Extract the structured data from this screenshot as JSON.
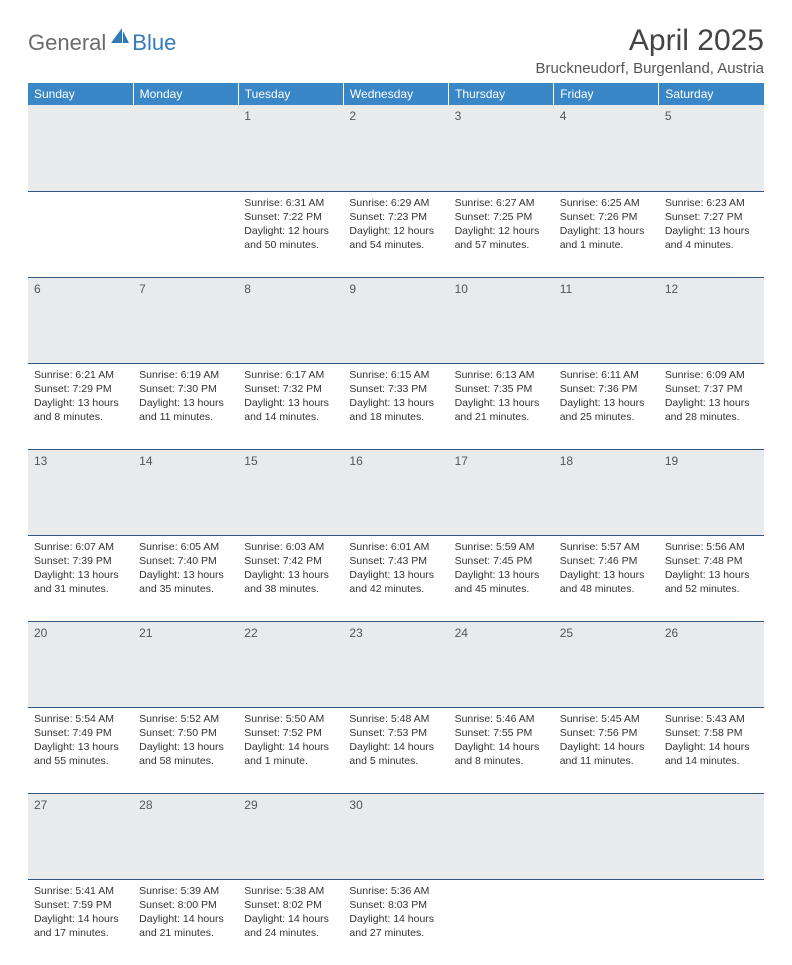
{
  "logo": {
    "general": "General",
    "blue": "Blue"
  },
  "title": "April 2025",
  "location": "Bruckneudorf, Burgenland, Austria",
  "colors": {
    "header_bg": "#3a87c8",
    "header_text": "#ffffff",
    "daynum_bg": "#e9eaeb",
    "rule": "#2b5f8f",
    "body_text": "#333333",
    "logo_gray": "#6b6b6b",
    "logo_blue": "#337ab7"
  },
  "weekdays": [
    "Sunday",
    "Monday",
    "Tuesday",
    "Wednesday",
    "Thursday",
    "Friday",
    "Saturday"
  ],
  "weeks": [
    {
      "nums": [
        "",
        "",
        "1",
        "2",
        "3",
        "4",
        "5"
      ],
      "cells": [
        {
          "sunrise": "",
          "sunset": "",
          "daylight": ""
        },
        {
          "sunrise": "",
          "sunset": "",
          "daylight": ""
        },
        {
          "sunrise": "Sunrise: 6:31 AM",
          "sunset": "Sunset: 7:22 PM",
          "daylight": "Daylight: 12 hours and 50 minutes."
        },
        {
          "sunrise": "Sunrise: 6:29 AM",
          "sunset": "Sunset: 7:23 PM",
          "daylight": "Daylight: 12 hours and 54 minutes."
        },
        {
          "sunrise": "Sunrise: 6:27 AM",
          "sunset": "Sunset: 7:25 PM",
          "daylight": "Daylight: 12 hours and 57 minutes."
        },
        {
          "sunrise": "Sunrise: 6:25 AM",
          "sunset": "Sunset: 7:26 PM",
          "daylight": "Daylight: 13 hours and 1 minute."
        },
        {
          "sunrise": "Sunrise: 6:23 AM",
          "sunset": "Sunset: 7:27 PM",
          "daylight": "Daylight: 13 hours and 4 minutes."
        }
      ]
    },
    {
      "nums": [
        "6",
        "7",
        "8",
        "9",
        "10",
        "11",
        "12"
      ],
      "cells": [
        {
          "sunrise": "Sunrise: 6:21 AM",
          "sunset": "Sunset: 7:29 PM",
          "daylight": "Daylight: 13 hours and 8 minutes."
        },
        {
          "sunrise": "Sunrise: 6:19 AM",
          "sunset": "Sunset: 7:30 PM",
          "daylight": "Daylight: 13 hours and 11 minutes."
        },
        {
          "sunrise": "Sunrise: 6:17 AM",
          "sunset": "Sunset: 7:32 PM",
          "daylight": "Daylight: 13 hours and 14 minutes."
        },
        {
          "sunrise": "Sunrise: 6:15 AM",
          "sunset": "Sunset: 7:33 PM",
          "daylight": "Daylight: 13 hours and 18 minutes."
        },
        {
          "sunrise": "Sunrise: 6:13 AM",
          "sunset": "Sunset: 7:35 PM",
          "daylight": "Daylight: 13 hours and 21 minutes."
        },
        {
          "sunrise": "Sunrise: 6:11 AM",
          "sunset": "Sunset: 7:36 PM",
          "daylight": "Daylight: 13 hours and 25 minutes."
        },
        {
          "sunrise": "Sunrise: 6:09 AM",
          "sunset": "Sunset: 7:37 PM",
          "daylight": "Daylight: 13 hours and 28 minutes."
        }
      ]
    },
    {
      "nums": [
        "13",
        "14",
        "15",
        "16",
        "17",
        "18",
        "19"
      ],
      "cells": [
        {
          "sunrise": "Sunrise: 6:07 AM",
          "sunset": "Sunset: 7:39 PM",
          "daylight": "Daylight: 13 hours and 31 minutes."
        },
        {
          "sunrise": "Sunrise: 6:05 AM",
          "sunset": "Sunset: 7:40 PM",
          "daylight": "Daylight: 13 hours and 35 minutes."
        },
        {
          "sunrise": "Sunrise: 6:03 AM",
          "sunset": "Sunset: 7:42 PM",
          "daylight": "Daylight: 13 hours and 38 minutes."
        },
        {
          "sunrise": "Sunrise: 6:01 AM",
          "sunset": "Sunset: 7:43 PM",
          "daylight": "Daylight: 13 hours and 42 minutes."
        },
        {
          "sunrise": "Sunrise: 5:59 AM",
          "sunset": "Sunset: 7:45 PM",
          "daylight": "Daylight: 13 hours and 45 minutes."
        },
        {
          "sunrise": "Sunrise: 5:57 AM",
          "sunset": "Sunset: 7:46 PM",
          "daylight": "Daylight: 13 hours and 48 minutes."
        },
        {
          "sunrise": "Sunrise: 5:56 AM",
          "sunset": "Sunset: 7:48 PM",
          "daylight": "Daylight: 13 hours and 52 minutes."
        }
      ]
    },
    {
      "nums": [
        "20",
        "21",
        "22",
        "23",
        "24",
        "25",
        "26"
      ],
      "cells": [
        {
          "sunrise": "Sunrise: 5:54 AM",
          "sunset": "Sunset: 7:49 PM",
          "daylight": "Daylight: 13 hours and 55 minutes."
        },
        {
          "sunrise": "Sunrise: 5:52 AM",
          "sunset": "Sunset: 7:50 PM",
          "daylight": "Daylight: 13 hours and 58 minutes."
        },
        {
          "sunrise": "Sunrise: 5:50 AM",
          "sunset": "Sunset: 7:52 PM",
          "daylight": "Daylight: 14 hours and 1 minute."
        },
        {
          "sunrise": "Sunrise: 5:48 AM",
          "sunset": "Sunset: 7:53 PM",
          "daylight": "Daylight: 14 hours and 5 minutes."
        },
        {
          "sunrise": "Sunrise: 5:46 AM",
          "sunset": "Sunset: 7:55 PM",
          "daylight": "Daylight: 14 hours and 8 minutes."
        },
        {
          "sunrise": "Sunrise: 5:45 AM",
          "sunset": "Sunset: 7:56 PM",
          "daylight": "Daylight: 14 hours and 11 minutes."
        },
        {
          "sunrise": "Sunrise: 5:43 AM",
          "sunset": "Sunset: 7:58 PM",
          "daylight": "Daylight: 14 hours and 14 minutes."
        }
      ]
    },
    {
      "nums": [
        "27",
        "28",
        "29",
        "30",
        "",
        "",
        ""
      ],
      "cells": [
        {
          "sunrise": "Sunrise: 5:41 AM",
          "sunset": "Sunset: 7:59 PM",
          "daylight": "Daylight: 14 hours and 17 minutes."
        },
        {
          "sunrise": "Sunrise: 5:39 AM",
          "sunset": "Sunset: 8:00 PM",
          "daylight": "Daylight: 14 hours and 21 minutes."
        },
        {
          "sunrise": "Sunrise: 5:38 AM",
          "sunset": "Sunset: 8:02 PM",
          "daylight": "Daylight: 14 hours and 24 minutes."
        },
        {
          "sunrise": "Sunrise: 5:36 AM",
          "sunset": "Sunset: 8:03 PM",
          "daylight": "Daylight: 14 hours and 27 minutes."
        },
        {
          "sunrise": "",
          "sunset": "",
          "daylight": ""
        },
        {
          "sunrise": "",
          "sunset": "",
          "daylight": ""
        },
        {
          "sunrise": "",
          "sunset": "",
          "daylight": ""
        }
      ]
    }
  ]
}
